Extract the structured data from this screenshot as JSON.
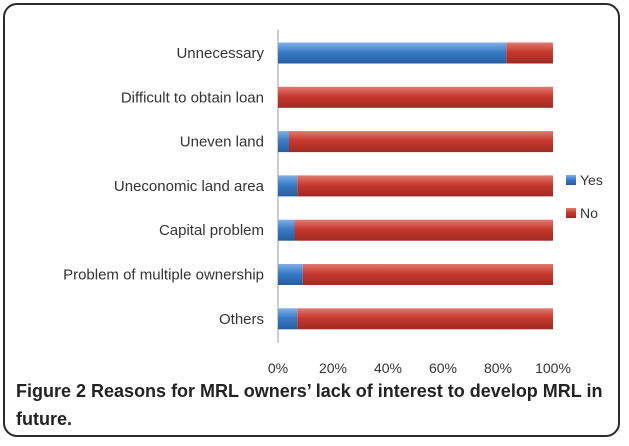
{
  "chart_data": {
    "type": "bar",
    "orientation": "horizontal",
    "stacked": "percent",
    "categories": [
      "Unnecessary",
      "Difficult to obtain loan",
      "Uneven land",
      "Uneconomic land area",
      "Capital problem",
      "Problem of multiple ownership",
      "Others"
    ],
    "series": [
      {
        "name": "Yes",
        "color": "#2f6fb8",
        "values": [
          83,
          0,
          4,
          7,
          6,
          9,
          7
        ]
      },
      {
        "name": "No",
        "color": "#c0392b",
        "values": [
          17,
          100,
          96,
          93,
          94,
          91,
          93
        ]
      }
    ],
    "xlim": [
      0,
      100
    ],
    "xticks": [
      "0%",
      "20%",
      "40%",
      "60%",
      "80%",
      "100%"
    ],
    "legend_position": "right",
    "grid": false
  },
  "caption": {
    "figure_label": "Figure 2",
    "text": "Reasons for MRL owners’ lack of interest to develop MRL in future."
  }
}
